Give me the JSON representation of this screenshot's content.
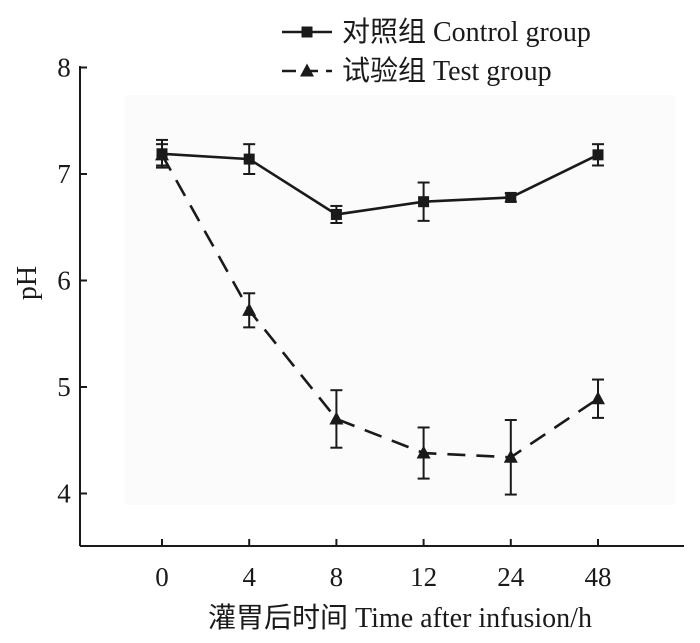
{
  "chart_data": {
    "type": "line",
    "categories": [
      "0",
      "4",
      "8",
      "12",
      "24",
      "48"
    ],
    "xlabel": "灌胃后时间  Time after infusion/h",
    "ylabel": "pH",
    "ylim": [
      3.5,
      8
    ],
    "yticks": [
      "4",
      "5",
      "6",
      "7",
      "8"
    ],
    "legend_position": "top-right",
    "grid": false,
    "series": [
      {
        "name": "对照组  Control group",
        "marker": "square",
        "line_style": "solid",
        "values": [
          7.19,
          7.14,
          6.62,
          6.74,
          6.78,
          7.18
        ],
        "errors": [
          0.13,
          0.14,
          0.08,
          0.18,
          0.04,
          0.1
        ]
      },
      {
        "name": "试验组  Test group",
        "marker": "triangle",
        "line_style": "dashed",
        "values": [
          7.18,
          5.72,
          4.7,
          4.38,
          4.34,
          4.89
        ],
        "errors": [
          0.1,
          0.16,
          0.27,
          0.24,
          0.35,
          0.18
        ]
      }
    ]
  }
}
